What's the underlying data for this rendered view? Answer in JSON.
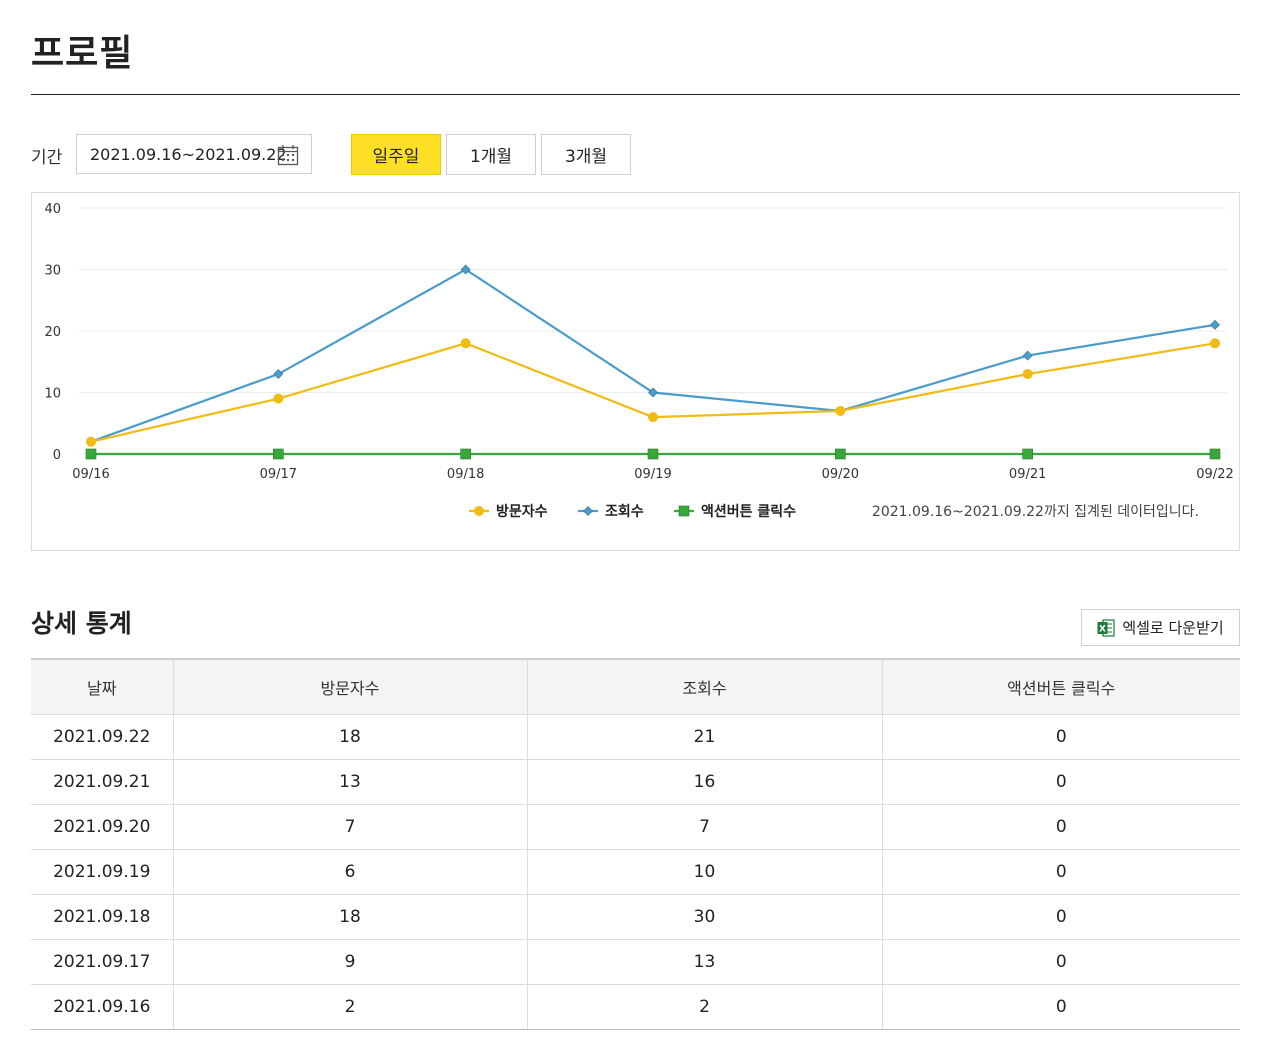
{
  "page": {
    "title": "프로필"
  },
  "filter": {
    "period_label": "기간",
    "date_range": "2021.09.16~2021.09.22",
    "buttons": [
      {
        "label": "일주일",
        "active": true
      },
      {
        "label": "1개월",
        "active": false
      },
      {
        "label": "3개월",
        "active": false
      }
    ]
  },
  "chart_data": {
    "type": "line",
    "x": [
      "09/16",
      "09/17",
      "09/18",
      "09/19",
      "09/20",
      "09/21",
      "09/22"
    ],
    "ylim": [
      0,
      40
    ],
    "yticks": [
      0,
      10,
      20,
      30,
      40
    ],
    "grid": true,
    "legend_position": "bottom",
    "series": [
      {
        "name": "방문자수",
        "values": [
          2,
          9,
          18,
          6,
          7,
          13,
          18
        ],
        "color": "#f0bb12",
        "marker": "circle"
      },
      {
        "name": "조회수",
        "values": [
          2,
          13,
          30,
          10,
          7,
          16,
          21
        ],
        "color": "#4a9ccb",
        "marker": "diamond"
      },
      {
        "name": "액션버튼 클릭수",
        "values": [
          0,
          0,
          0,
          0,
          0,
          0,
          0
        ],
        "color": "#3ba73b",
        "marker": "square"
      }
    ],
    "note": "2021.09.16~2021.09.22까지 집계된 데이터입니다."
  },
  "stats": {
    "title": "상세 통계",
    "excel_label": "엑셀로 다운받기",
    "columns": [
      "날짜",
      "방문자수",
      "조회수",
      "액션버튼 클릭수"
    ],
    "rows": [
      [
        "2021.09.22",
        "18",
        "21",
        "0"
      ],
      [
        "2021.09.21",
        "13",
        "16",
        "0"
      ],
      [
        "2021.09.20",
        "7",
        "7",
        "0"
      ],
      [
        "2021.09.19",
        "6",
        "10",
        "0"
      ],
      [
        "2021.09.18",
        "18",
        "30",
        "0"
      ],
      [
        "2021.09.17",
        "9",
        "13",
        "0"
      ],
      [
        "2021.09.16",
        "2",
        "2",
        "0"
      ]
    ]
  }
}
